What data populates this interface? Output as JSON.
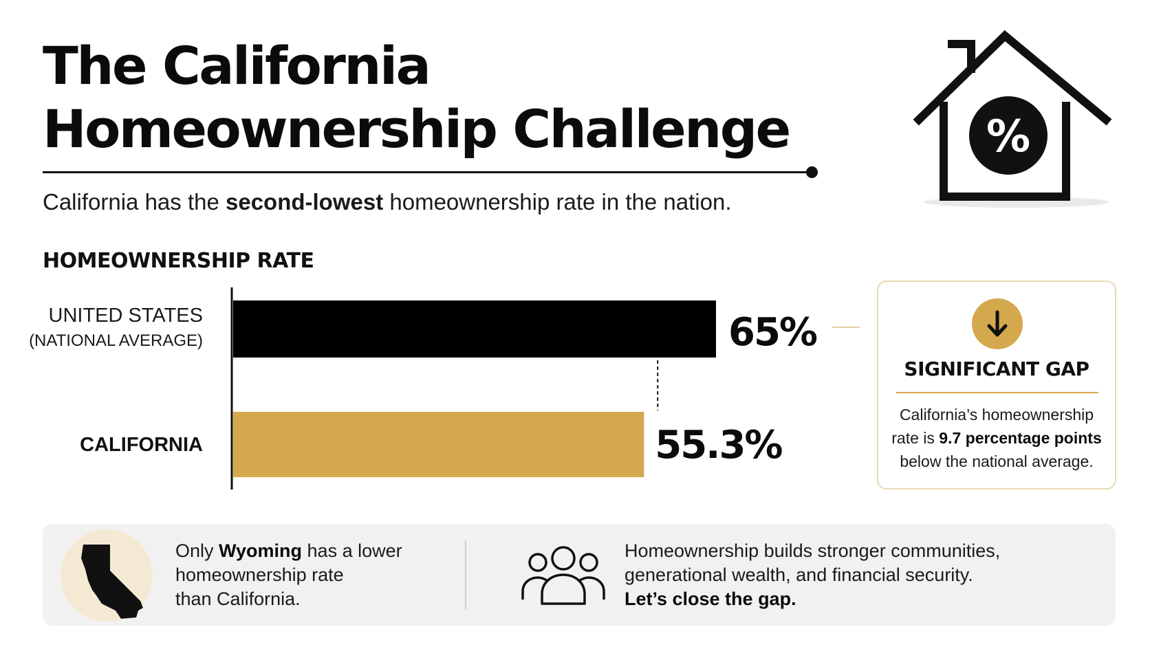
{
  "title": {
    "line1": "The California",
    "line2": "Homeownership Challenge"
  },
  "subtitle": {
    "before": "California has the ",
    "bold": "second-lowest",
    "after": " homeownership rate in the nation."
  },
  "icons": {
    "house": "house-percent-icon",
    "gap": "arrow-down-icon",
    "state": "california-map-icon",
    "people": "people-group-icon"
  },
  "colors": {
    "us_bar": "#000000",
    "california_bar": "#d4a84c",
    "accent": "#d4a84c",
    "card_border": "#e8d9b2",
    "panel_bg": "#f1f1f1"
  },
  "chart_data": {
    "type": "bar",
    "orientation": "horizontal",
    "title": "HOMEOWNERSHIP RATE",
    "categories": [
      {
        "label": "UNITED STATES",
        "sublabel": "(NATIONAL AVERAGE)"
      },
      {
        "label": "CALIFORNIA",
        "sublabel": ""
      }
    ],
    "values": [
      65,
      55.3
    ],
    "value_labels": [
      "65%",
      "55.3%"
    ],
    "unit": "%",
    "xlim": [
      0,
      100
    ],
    "grid": false,
    "legend": "none"
  },
  "gap_card": {
    "title": "SIGNIFICANT GAP",
    "line1": "California’s homeownership",
    "line2_before": "rate is ",
    "line2_bold": "9.7 percentage points",
    "line3": "below the national average."
  },
  "bottom": {
    "left_before": "Only ",
    "left_bold": "Wyoming",
    "left_after": " has a lower",
    "left_line2": "homeownership rate",
    "left_line3": "than California.",
    "right_line1": "Homeownership builds stronger communities,",
    "right_line2": "generational wealth, and financial security.",
    "right_bold": "Let’s close the gap."
  }
}
